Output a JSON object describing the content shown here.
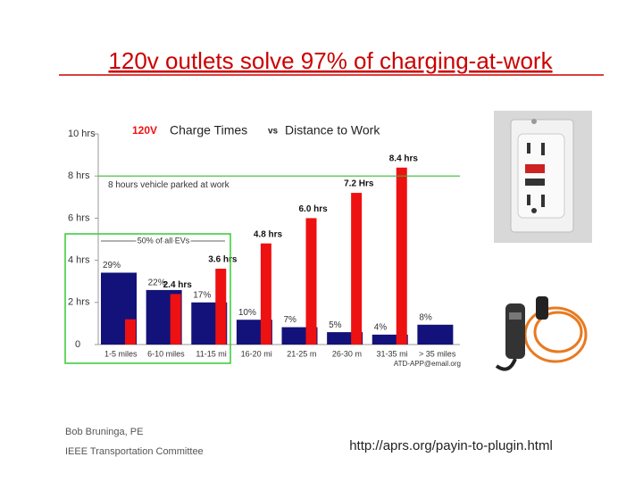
{
  "slide": {
    "title": "120v outlets solve 97% of charging-at-work",
    "footer_left": [
      "Bob Bruninga, PE",
      "IEEE Transportation Committee"
    ],
    "footer_right": "http://aprs.org/payin-to-plugin.html"
  },
  "chart_data": {
    "type": "bar",
    "title_parts": [
      "120V",
      "Charge Times",
      "vs",
      "Distance to Work"
    ],
    "categories": [
      "1-5 miles",
      "6-10 miles",
      "11-15 mi",
      "16-20 mi",
      "21-25 m",
      "26-30 m",
      "31-35 mi",
      "> 35 miles"
    ],
    "series": [
      {
        "name": "% of EVs",
        "color": "#12127a",
        "axis": "y2",
        "values": [
          29,
          22,
          17,
          10,
          7,
          5,
          4,
          8
        ],
        "value_labels": [
          "29%",
          "22%",
          "17%",
          "10%",
          "7%",
          "5%",
          "4%",
          "8%"
        ]
      },
      {
        "name": "Charge time",
        "color": "#ee1111",
        "values": [
          1.2,
          2.4,
          3.6,
          4.8,
          6.0,
          7.2,
          8.4,
          null
        ],
        "value_labels": [
          null,
          "2.4 hrs",
          "3.6 hrs",
          "4.8 hrs",
          "6.0 hrs",
          "7.2 Hrs",
          "8.4 hrs",
          null
        ]
      }
    ],
    "ylim": [
      0,
      10
    ],
    "yticks": [
      0,
      {
        "value": 2,
        "label": "2 hrs"
      },
      {
        "value": 4,
        "label": "4 hrs"
      },
      {
        "value": 6,
        "label": "6 hrs"
      },
      {
        "value": 8,
        "label": "8 hrs"
      },
      {
        "value": 10,
        "label": "10 hrs"
      }
    ],
    "y2lim": [
      0,
      85
    ],
    "annotations": {
      "parked": {
        "value": 8,
        "label": "8 hours vehicle parked at work"
      },
      "half": "50% of all EVs",
      "credit": "ATD-APP@email.org"
    }
  }
}
